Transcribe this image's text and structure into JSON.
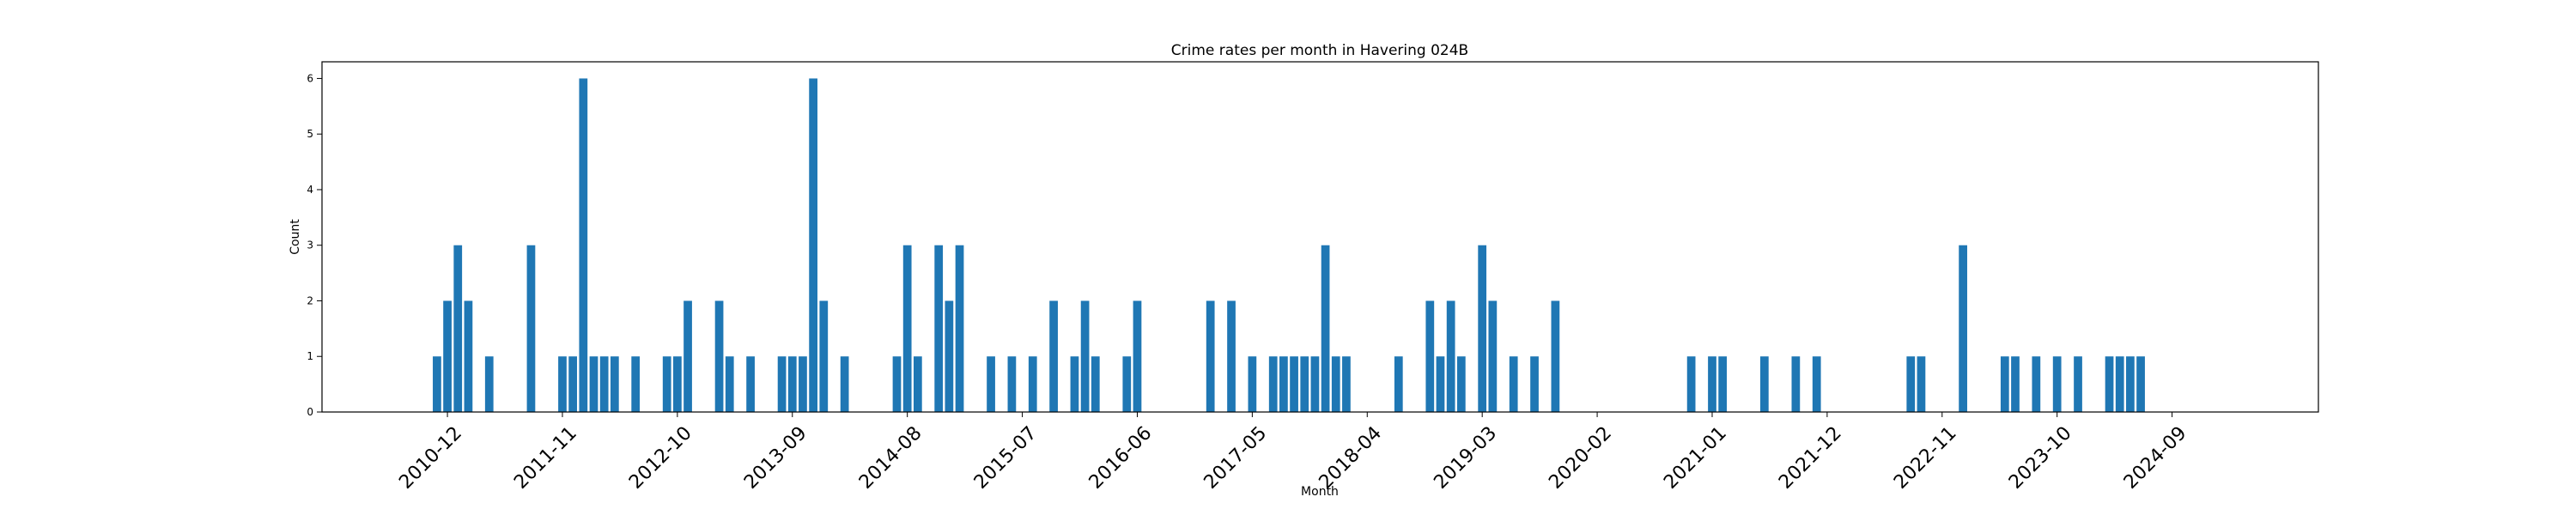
{
  "chart_data": {
    "type": "bar",
    "title": "Crime rates per month in Havering 024B",
    "xlabel": "Month",
    "ylabel": "Count",
    "ylim": [
      0,
      6.3
    ],
    "yticks": [
      0,
      1,
      2,
      3,
      4,
      5,
      6
    ],
    "x_range": [
      "2009-12",
      "2025-11"
    ],
    "xticks": [
      "2010-12",
      "2011-11",
      "2012-10",
      "2013-09",
      "2014-08",
      "2015-07",
      "2016-06",
      "2017-05",
      "2018-04",
      "2019-03",
      "2020-02",
      "2021-01",
      "2021-12",
      "2022-11",
      "2023-10",
      "2024-09"
    ],
    "color": "#1f77b4",
    "grid": false,
    "bars": [
      {
        "x": "2010-11",
        "y": 1
      },
      {
        "x": "2010-12",
        "y": 2
      },
      {
        "x": "2011-01",
        "y": 3
      },
      {
        "x": "2011-02",
        "y": 2
      },
      {
        "x": "2011-04",
        "y": 1
      },
      {
        "x": "2011-08",
        "y": 3
      },
      {
        "x": "2011-11",
        "y": 1
      },
      {
        "x": "2011-12",
        "y": 1
      },
      {
        "x": "2012-01",
        "y": 6
      },
      {
        "x": "2012-02",
        "y": 1
      },
      {
        "x": "2012-03",
        "y": 1
      },
      {
        "x": "2012-04",
        "y": 1
      },
      {
        "x": "2012-06",
        "y": 1
      },
      {
        "x": "2012-09",
        "y": 1
      },
      {
        "x": "2012-10",
        "y": 1
      },
      {
        "x": "2012-11",
        "y": 2
      },
      {
        "x": "2013-02",
        "y": 2
      },
      {
        "x": "2013-03",
        "y": 1
      },
      {
        "x": "2013-05",
        "y": 1
      },
      {
        "x": "2013-08",
        "y": 1
      },
      {
        "x": "2013-09",
        "y": 1
      },
      {
        "x": "2013-10",
        "y": 1
      },
      {
        "x": "2013-11",
        "y": 6
      },
      {
        "x": "2013-12",
        "y": 2
      },
      {
        "x": "2014-02",
        "y": 1
      },
      {
        "x": "2014-07",
        "y": 1
      },
      {
        "x": "2014-08",
        "y": 3
      },
      {
        "x": "2014-09",
        "y": 1
      },
      {
        "x": "2014-11",
        "y": 3
      },
      {
        "x": "2014-12",
        "y": 2
      },
      {
        "x": "2015-01",
        "y": 3
      },
      {
        "x": "2015-04",
        "y": 1
      },
      {
        "x": "2015-06",
        "y": 1
      },
      {
        "x": "2015-08",
        "y": 1
      },
      {
        "x": "2015-10",
        "y": 2
      },
      {
        "x": "2015-12",
        "y": 1
      },
      {
        "x": "2016-01",
        "y": 2
      },
      {
        "x": "2016-02",
        "y": 1
      },
      {
        "x": "2016-05",
        "y": 1
      },
      {
        "x": "2016-06",
        "y": 2
      },
      {
        "x": "2017-01",
        "y": 2
      },
      {
        "x": "2017-03",
        "y": 2
      },
      {
        "x": "2017-05",
        "y": 1
      },
      {
        "x": "2017-07",
        "y": 1
      },
      {
        "x": "2017-08",
        "y": 1
      },
      {
        "x": "2017-09",
        "y": 1
      },
      {
        "x": "2017-10",
        "y": 1
      },
      {
        "x": "2017-11",
        "y": 1
      },
      {
        "x": "2017-12",
        "y": 3
      },
      {
        "x": "2018-01",
        "y": 1
      },
      {
        "x": "2018-02",
        "y": 1
      },
      {
        "x": "2018-07",
        "y": 1
      },
      {
        "x": "2018-10",
        "y": 2
      },
      {
        "x": "2018-11",
        "y": 1
      },
      {
        "x": "2018-12",
        "y": 2
      },
      {
        "x": "2019-01",
        "y": 1
      },
      {
        "x": "2019-03",
        "y": 3
      },
      {
        "x": "2019-04",
        "y": 2
      },
      {
        "x": "2019-06",
        "y": 1
      },
      {
        "x": "2019-08",
        "y": 1
      },
      {
        "x": "2019-10",
        "y": 2
      },
      {
        "x": "2020-11",
        "y": 1
      },
      {
        "x": "2021-01",
        "y": 1
      },
      {
        "x": "2021-02",
        "y": 1
      },
      {
        "x": "2021-06",
        "y": 1
      },
      {
        "x": "2021-09",
        "y": 1
      },
      {
        "x": "2021-11",
        "y": 1
      },
      {
        "x": "2022-08",
        "y": 1
      },
      {
        "x": "2022-09",
        "y": 1
      },
      {
        "x": "2023-01",
        "y": 3
      },
      {
        "x": "2023-05",
        "y": 1
      },
      {
        "x": "2023-06",
        "y": 1
      },
      {
        "x": "2023-08",
        "y": 1
      },
      {
        "x": "2023-10",
        "y": 1
      },
      {
        "x": "2023-12",
        "y": 1
      },
      {
        "x": "2024-03",
        "y": 1
      },
      {
        "x": "2024-04",
        "y": 1
      },
      {
        "x": "2024-05",
        "y": 1
      },
      {
        "x": "2024-06",
        "y": 1
      }
    ]
  }
}
